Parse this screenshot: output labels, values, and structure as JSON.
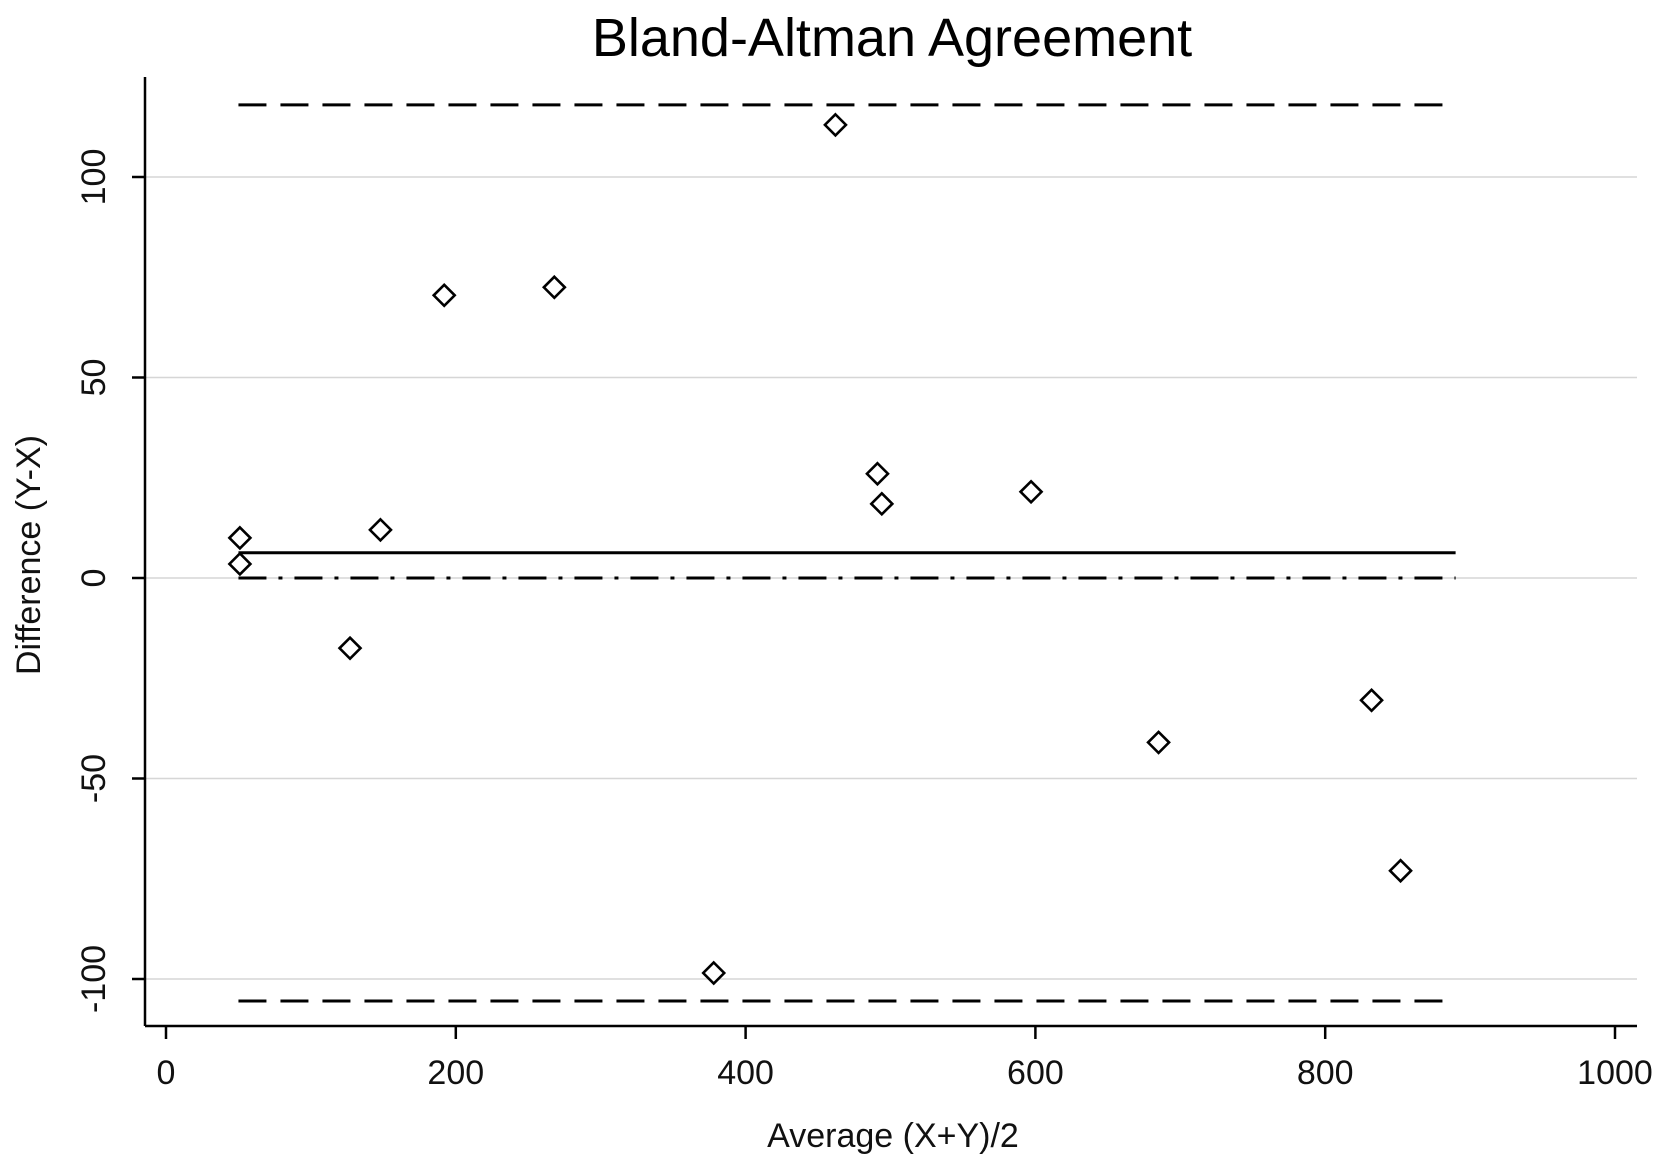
{
  "chart_data": {
    "type": "scatter",
    "title": "Bland-Altman Agreement",
    "xlabel": "Average (X+Y)/2",
    "ylabel": "Difference (Y-X)",
    "xlim": [
      0,
      1000
    ],
    "ylim": [
      -110,
      125
    ],
    "x_ticks": [
      0,
      200,
      400,
      600,
      800,
      1000
    ],
    "x_tick_labels": [
      "0",
      "200",
      "400",
      "600",
      "800",
      "1000"
    ],
    "y_ticks": [
      -100,
      -50,
      0,
      50,
      100
    ],
    "y_tick_labels": [
      "-100",
      "-50",
      "0",
      "50",
      "100"
    ],
    "grid": true,
    "points": [
      {
        "x": 51,
        "y": 10
      },
      {
        "x": 51,
        "y": 3.5
      },
      {
        "x": 127,
        "y": -17.5
      },
      {
        "x": 148,
        "y": 12
      },
      {
        "x": 192,
        "y": 70.5
      },
      {
        "x": 268,
        "y": 72.5
      },
      {
        "x": 378,
        "y": -98.5
      },
      {
        "x": 462,
        "y": 113
      },
      {
        "x": 491,
        "y": 26
      },
      {
        "x": 494,
        "y": 18.5
      },
      {
        "x": 597,
        "y": 21.5
      },
      {
        "x": 685,
        "y": -41
      },
      {
        "x": 832,
        "y": -30.5
      },
      {
        "x": 852,
        "y": -73
      }
    ],
    "reference_lines": [
      {
        "role": "upper limit of agreement",
        "y": 118,
        "x_range": [
          50,
          890
        ],
        "style": "dashed"
      },
      {
        "role": "mean difference",
        "y": 6.3,
        "x_range": [
          50,
          890
        ],
        "style": "solid"
      },
      {
        "role": "zero line",
        "y": 0,
        "x_range": [
          50,
          890
        ],
        "style": "dash-dot"
      },
      {
        "role": "lower limit of agreement",
        "y": -105.5,
        "x_range": [
          50,
          890
        ],
        "style": "dashed"
      }
    ],
    "colors": {
      "background": "#ffffff",
      "axis": "#000000",
      "grid": "#d6d6d6",
      "marker_stroke": "#000000",
      "marker_fill": "#ffffff"
    },
    "marker": "hollow-diamond"
  }
}
